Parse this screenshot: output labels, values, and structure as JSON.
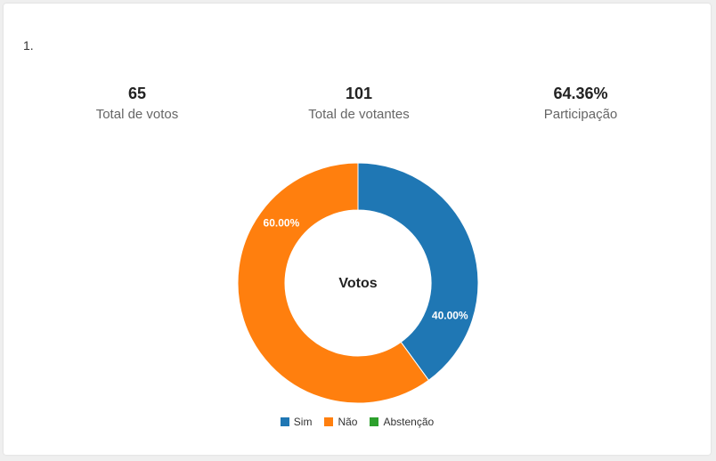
{
  "question": {
    "number": "1."
  },
  "stats": [
    {
      "value": "65",
      "label": "Total de votos"
    },
    {
      "value": "101",
      "label": "Total de votantes"
    },
    {
      "value": "64.36%",
      "label": "Participação"
    }
  ],
  "chart_data": {
    "type": "pie",
    "donut": true,
    "title": "Votos",
    "categories": [
      "Sim",
      "Não",
      "Abstenção"
    ],
    "values": [
      40.0,
      60.0,
      0.0
    ],
    "labels": [
      "40.00%",
      "60.00%",
      ""
    ],
    "colors": [
      "#1f77b4",
      "#ff7f0e",
      "#2ca02c"
    ],
    "legend_position": "bottom"
  }
}
